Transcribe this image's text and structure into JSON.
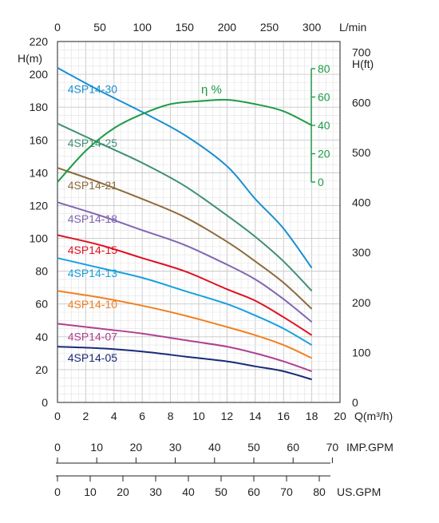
{
  "chart_data": {
    "type": "line",
    "y_left": {
      "label": "H(m)",
      "min": 0,
      "max": 220,
      "ticks": [
        0,
        20,
        40,
        60,
        80,
        100,
        120,
        140,
        160,
        180,
        200,
        220
      ]
    },
    "y_right": {
      "label": "H(ft)",
      "ticks": [
        0,
        100,
        200,
        300,
        400,
        500,
        600,
        700
      ]
    },
    "x_bottom": {
      "label": "Q(m³/h)",
      "min": 0,
      "max": 20,
      "ticks": [
        0,
        2,
        4,
        6,
        8,
        10,
        12,
        14,
        16,
        18,
        20
      ]
    },
    "x_top": {
      "label": "L/min",
      "ticks": [
        0,
        50,
        100,
        150,
        200,
        250,
        300
      ]
    },
    "efficiency_axis": {
      "label": "η %",
      "ticks": [
        0,
        20,
        40,
        60,
        80
      ]
    },
    "grid": true,
    "series": [
      {
        "name": "4SP14-30",
        "color": "#1a8fd0",
        "x": [
          0,
          3,
          6,
          9,
          12,
          14,
          16,
          18
        ],
        "y": [
          204,
          190,
          177,
          163,
          144,
          124,
          106,
          82
        ]
      },
      {
        "name": "4SP14-25",
        "color": "#3f8f73",
        "x": [
          0,
          3,
          6,
          9,
          12,
          14,
          16,
          18
        ],
        "y": [
          170,
          158,
          146,
          132,
          114,
          101,
          86,
          68
        ]
      },
      {
        "name": "4SP14-21",
        "color": "#8c6a3d",
        "x": [
          0,
          3,
          6,
          9,
          12,
          14,
          16,
          18
        ],
        "y": [
          143,
          134,
          124,
          113,
          98,
          86,
          73,
          57
        ]
      },
      {
        "name": "4SP14-18",
        "color": "#8066b5",
        "x": [
          0,
          3,
          6,
          9,
          12,
          14,
          16,
          18
        ],
        "y": [
          122,
          114,
          105,
          96,
          84,
          75,
          63,
          49
        ]
      },
      {
        "name": "4SP14-15",
        "color": "#e01020",
        "x": [
          0,
          3,
          6,
          9,
          12,
          14,
          16,
          18
        ],
        "y": [
          102,
          96,
          88,
          80,
          69,
          62,
          52,
          41
        ]
      },
      {
        "name": "4SP14-13",
        "color": "#18a0e0",
        "x": [
          0,
          3,
          6,
          9,
          12,
          14,
          16,
          18
        ],
        "y": [
          88,
          82,
          76,
          68,
          60,
          53,
          45,
          35
        ]
      },
      {
        "name": "4SP14-10",
        "color": "#f08020",
        "x": [
          0,
          3,
          6,
          9,
          12,
          14,
          16,
          18
        ],
        "y": [
          68,
          64,
          59,
          53,
          46,
          41,
          35,
          27
        ]
      },
      {
        "name": "4SP14-07",
        "color": "#b04090",
        "x": [
          0,
          3,
          6,
          9,
          12,
          14,
          16,
          18
        ],
        "y": [
          48,
          45,
          42,
          38,
          34,
          30,
          25,
          19
        ]
      },
      {
        "name": "4SP14-05",
        "color": "#1a2a78",
        "x": [
          0,
          3,
          6,
          9,
          12,
          14,
          16,
          18
        ],
        "y": [
          34,
          33,
          31,
          28,
          25,
          22,
          19,
          14
        ]
      }
    ],
    "efficiency": {
      "name": "η %",
      "color": "#1e9b46",
      "x": [
        0,
        2,
        4,
        6,
        8,
        10,
        12,
        14,
        16,
        18
      ],
      "y": [
        0,
        22,
        38,
        48,
        55,
        57,
        58,
        55,
        50,
        40
      ]
    },
    "secondary_scales": [
      {
        "label": "IMP.GPM",
        "ticks": [
          0,
          10,
          20,
          30,
          40,
          50,
          60,
          70
        ]
      },
      {
        "label": "US.GPM",
        "ticks": [
          0,
          10,
          20,
          30,
          40,
          50,
          60,
          70,
          80
        ]
      }
    ]
  }
}
